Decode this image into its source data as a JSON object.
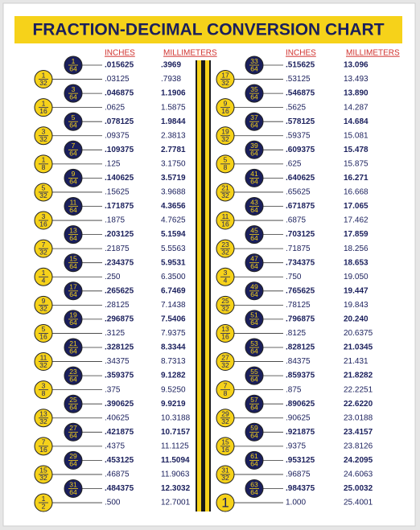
{
  "title": "FRACTION-DECIMAL CONVERSION CHART",
  "columns": [
    {
      "header_inches": "INCHES",
      "header_mm": "MILLIMETERS",
      "rows": [
        {
          "num": "1",
          "den": "64",
          "inches": ".015625",
          "mm": ".3969"
        },
        {
          "num": "1",
          "den": "32",
          "inches": ".03125",
          "mm": ".7938"
        },
        {
          "num": "3",
          "den": "64",
          "inches": ".046875",
          "mm": "1.1906"
        },
        {
          "num": "1",
          "den": "16",
          "inches": ".0625",
          "mm": "1.5875"
        },
        {
          "num": "5",
          "den": "64",
          "inches": ".078125",
          "mm": "1.9844"
        },
        {
          "num": "3",
          "den": "32",
          "inches": ".09375",
          "mm": "2.3813"
        },
        {
          "num": "7",
          "den": "64",
          "inches": ".109375",
          "mm": "2.7781"
        },
        {
          "num": "1",
          "den": "8",
          "inches": ".125",
          "mm": "3.1750"
        },
        {
          "num": "9",
          "den": "64",
          "inches": ".140625",
          "mm": "3.5719"
        },
        {
          "num": "5",
          "den": "32",
          "inches": ".15625",
          "mm": "3.9688"
        },
        {
          "num": "11",
          "den": "64",
          "inches": ".171875",
          "mm": "4.3656"
        },
        {
          "num": "3",
          "den": "16",
          "inches": ".1875",
          "mm": "4.7625"
        },
        {
          "num": "13",
          "den": "64",
          "inches": ".203125",
          "mm": "5.1594"
        },
        {
          "num": "7",
          "den": "32",
          "inches": ".21875",
          "mm": "5.5563"
        },
        {
          "num": "15",
          "den": "64",
          "inches": ".234375",
          "mm": "5.9531"
        },
        {
          "num": "1",
          "den": "4",
          "inches": ".250",
          "mm": "6.3500"
        },
        {
          "num": "17",
          "den": "64",
          "inches": ".265625",
          "mm": "6.7469"
        },
        {
          "num": "9",
          "den": "32",
          "inches": ".28125",
          "mm": "7.1438"
        },
        {
          "num": "19",
          "den": "64",
          "inches": ".296875",
          "mm": "7.5406"
        },
        {
          "num": "5",
          "den": "16",
          "inches": ".3125",
          "mm": "7.9375"
        },
        {
          "num": "21",
          "den": "64",
          "inches": ".328125",
          "mm": "8.3344"
        },
        {
          "num": "11",
          "den": "32",
          "inches": ".34375",
          "mm": "8.7313"
        },
        {
          "num": "23",
          "den": "64",
          "inches": ".359375",
          "mm": "9.1282"
        },
        {
          "num": "3",
          "den": "8",
          "inches": ".375",
          "mm": "9.5250"
        },
        {
          "num": "25",
          "den": "64",
          "inches": ".390625",
          "mm": "9.9219"
        },
        {
          "num": "13",
          "den": "32",
          "inches": ".40625",
          "mm": "10.3188"
        },
        {
          "num": "27",
          "den": "64",
          "inches": ".421875",
          "mm": "10.7157"
        },
        {
          "num": "7",
          "den": "16",
          "inches": ".4375",
          "mm": "11.1125"
        },
        {
          "num": "29",
          "den": "64",
          "inches": ".453125",
          "mm": "11.5094"
        },
        {
          "num": "15",
          "den": "32",
          "inches": ".46875",
          "mm": "11.9063"
        },
        {
          "num": "31",
          "den": "64",
          "inches": ".484375",
          "mm": "12.3032"
        },
        {
          "num": "1",
          "den": "2",
          "inches": ".500",
          "mm": "12.7001"
        }
      ]
    },
    {
      "header_inches": "INCHES",
      "header_mm": "MILLIMETERS",
      "rows": [
        {
          "num": "33",
          "den": "64",
          "inches": ".515625",
          "mm": "13.096"
        },
        {
          "num": "17",
          "den": "32",
          "inches": ".53125",
          "mm": "13.493"
        },
        {
          "num": "35",
          "den": "64",
          "inches": ".546875",
          "mm": "13.890"
        },
        {
          "num": "9",
          "den": "16",
          "inches": ".5625",
          "mm": "14.287"
        },
        {
          "num": "37",
          "den": "64",
          "inches": ".578125",
          "mm": "14.684"
        },
        {
          "num": "19",
          "den": "32",
          "inches": ".59375",
          "mm": "15.081"
        },
        {
          "num": "39",
          "den": "64",
          "inches": ".609375",
          "mm": "15.478"
        },
        {
          "num": "5",
          "den": "8",
          "inches": ".625",
          "mm": "15.875"
        },
        {
          "num": "41",
          "den": "64",
          "inches": ".640625",
          "mm": "16.271"
        },
        {
          "num": "21",
          "den": "32",
          "inches": ".65625",
          "mm": "16.668"
        },
        {
          "num": "43",
          "den": "64",
          "inches": ".671875",
          "mm": "17.065"
        },
        {
          "num": "11",
          "den": "16",
          "inches": ".6875",
          "mm": "17.462"
        },
        {
          "num": "45",
          "den": "64",
          "inches": ".703125",
          "mm": "17.859"
        },
        {
          "num": "23",
          "den": "32",
          "inches": ".71875",
          "mm": "18.256"
        },
        {
          "num": "47",
          "den": "64",
          "inches": ".734375",
          "mm": "18.653"
        },
        {
          "num": "3",
          "den": "4",
          "inches": ".750",
          "mm": "19.050"
        },
        {
          "num": "49",
          "den": "64",
          "inches": ".765625",
          "mm": "19.447"
        },
        {
          "num": "25",
          "den": "32",
          "inches": ".78125",
          "mm": "19.843"
        },
        {
          "num": "51",
          "den": "64",
          "inches": ".796875",
          "mm": "20.240"
        },
        {
          "num": "13",
          "den": "16",
          "inches": ".8125",
          "mm": "20.6375"
        },
        {
          "num": "53",
          "den": "64",
          "inches": ".828125",
          "mm": "21.0345"
        },
        {
          "num": "27",
          "den": "32",
          "inches": ".84375",
          "mm": "21.431"
        },
        {
          "num": "55",
          "den": "64",
          "inches": ".859375",
          "mm": "21.8282"
        },
        {
          "num": "7",
          "den": "8",
          "inches": ".875",
          "mm": "22.2251"
        },
        {
          "num": "57",
          "den": "64",
          "inches": ".890625",
          "mm": "22.6220"
        },
        {
          "num": "29",
          "den": "32",
          "inches": ".90625",
          "mm": "23.0188"
        },
        {
          "num": "59",
          "den": "64",
          "inches": ".921875",
          "mm": "23.4157"
        },
        {
          "num": "15",
          "den": "16",
          "inches": ".9375",
          "mm": "23.8126"
        },
        {
          "num": "61",
          "den": "64",
          "inches": ".953125",
          "mm": "24.2095"
        },
        {
          "num": "31",
          "den": "32",
          "inches": ".96875",
          "mm": "24.6063"
        },
        {
          "num": "63",
          "den": "64",
          "inches": ".984375",
          "mm": "25.0032"
        },
        {
          "num": "1",
          "inches": "1.000",
          "mm": "25.4001"
        }
      ]
    }
  ]
}
